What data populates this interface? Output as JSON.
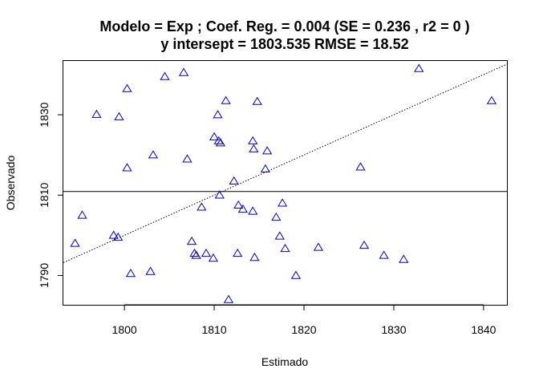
{
  "chart_data": {
    "type": "scatter",
    "title_line1": "Modelo =  Exp ; Coef. Reg. =  0.004  (SE =  0.236 , r2 =  0 )",
    "title_line2": "y intersept =  1803.535 RMSE =  18.52",
    "xlabel": "Estimado",
    "ylabel": "Observado",
    "xlim": [
      1793.2,
      1842.6
    ],
    "ylim": [
      1782.7,
      1843.4
    ],
    "x_ticks": [
      1800,
      1810,
      1820,
      1830,
      1840
    ],
    "y_ticks": [
      1790,
      1810,
      1830
    ],
    "grid": false,
    "marker": "open-triangle",
    "point_color": "#0000cc",
    "reference_lines": {
      "horizontal_y": 1810.9,
      "fitted_line": {
        "style": "dotted",
        "points": [
          [
            1793.2,
            1793.2
          ],
          [
            1842.6,
            1842.6
          ]
        ]
      }
    },
    "points": [
      [
        1794.5,
        1798.0
      ],
      [
        1795.3,
        1805.0
      ],
      [
        1796.9,
        1830.1
      ],
      [
        1798.8,
        1800.0
      ],
      [
        1799.3,
        1799.5
      ],
      [
        1799.4,
        1829.5
      ],
      [
        1800.3,
        1816.8
      ],
      [
        1800.3,
        1836.5
      ],
      [
        1800.7,
        1790.5
      ],
      [
        1802.9,
        1791.0
      ],
      [
        1803.2,
        1820.0
      ],
      [
        1804.5,
        1839.5
      ],
      [
        1806.6,
        1840.5
      ],
      [
        1807.0,
        1819.0
      ],
      [
        1807.5,
        1798.5
      ],
      [
        1807.8,
        1795.5
      ],
      [
        1808.0,
        1795.0
      ],
      [
        1808.6,
        1807.0
      ],
      [
        1809.1,
        1795.5
      ],
      [
        1809.9,
        1794.3
      ],
      [
        1810.0,
        1824.5
      ],
      [
        1810.4,
        1830.0
      ],
      [
        1810.5,
        1823.5
      ],
      [
        1810.6,
        1810.0
      ],
      [
        1810.7,
        1823.0
      ],
      [
        1811.3,
        1833.5
      ],
      [
        1811.6,
        1784.0
      ],
      [
        1812.2,
        1813.5
      ],
      [
        1812.6,
        1795.5
      ],
      [
        1812.7,
        1807.5
      ],
      [
        1813.2,
        1806.5
      ],
      [
        1814.3,
        1823.5
      ],
      [
        1814.4,
        1821.5
      ],
      [
        1814.3,
        1806.0
      ],
      [
        1814.5,
        1794.5
      ],
      [
        1814.8,
        1833.3
      ],
      [
        1815.7,
        1816.5
      ],
      [
        1815.9,
        1821.0
      ],
      [
        1816.9,
        1804.5
      ],
      [
        1817.3,
        1799.8
      ],
      [
        1817.6,
        1808.0
      ],
      [
        1817.9,
        1796.7
      ],
      [
        1819.1,
        1790.0
      ],
      [
        1821.6,
        1797.0
      ],
      [
        1826.3,
        1817.0
      ],
      [
        1826.7,
        1797.5
      ],
      [
        1828.9,
        1795.0
      ],
      [
        1831.1,
        1794.0
      ],
      [
        1832.8,
        1841.5
      ],
      [
        1840.9,
        1833.5
      ]
    ]
  }
}
